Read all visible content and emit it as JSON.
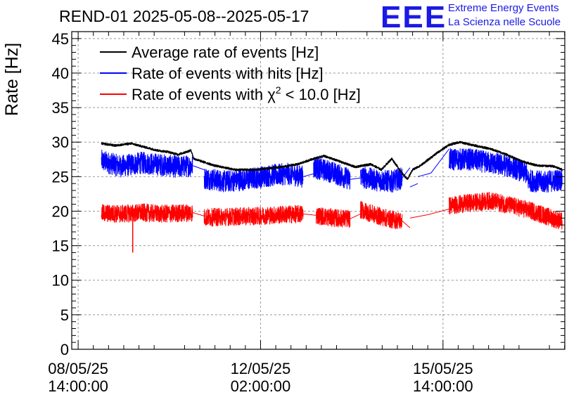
{
  "header": {
    "title": "REND-01 2025-05-08--2025-05-17",
    "logo_text": "EEE",
    "logo_line1": "Extreme Energy Events",
    "logo_line2": "La Scienza nelle Scuole"
  },
  "colors": {
    "average": "#000000",
    "hits": "#0000ff",
    "chi2": "#ff0000",
    "logo": "#1a1ae6",
    "grid": "#999999"
  },
  "chart_data": {
    "type": "line",
    "ylabel": "Rate [Hz]",
    "xlabel": "",
    "ylim": [
      0,
      46
    ],
    "yticks": [
      0,
      5,
      10,
      15,
      20,
      25,
      30,
      35,
      40,
      45
    ],
    "x_unit": "days since 2025-05-08 00:00",
    "xlim": [
      0.46,
      9.92
    ],
    "xticks": [
      {
        "x": 0.583,
        "line1": "08/05/25",
        "line2": "14:00:00"
      },
      {
        "x": 4.083,
        "line1": "12/05/25",
        "line2": "02:00:00"
      },
      {
        "x": 7.583,
        "line1": "15/05/25",
        "line2": "14:00:00"
      }
    ],
    "grid": true,
    "legend_position": "top-left",
    "legend": [
      {
        "name": "Average rate of events [Hz]",
        "color": "#000000"
      },
      {
        "name": "Rate of events with hits [Hz]",
        "color": "#0000ff"
      },
      {
        "name": "Rate of events with χ² < 10.0 [Hz]",
        "color": "#ff0000"
      }
    ],
    "series": [
      {
        "name": "Average rate of events [Hz]",
        "color": "#000000",
        "noise": 0.3,
        "segments": [
          {
            "x": [
              1.03,
              1.3,
              1.6,
              1.9,
              2.1,
              2.3,
              2.5,
              2.75,
              2.8
            ],
            "y": [
              29.8,
              29.5,
              29.8,
              29.2,
              28.8,
              28.6,
              28.2,
              28.8,
              27.6
            ]
          },
          {
            "x": [
              2.8,
              3.2,
              3.6,
              4.0,
              4.5,
              4.8,
              5.1,
              5.3
            ],
            "y": [
              27.6,
              26.6,
              26.0,
              26.0,
              26.4,
              26.8,
              27.6,
              28.0
            ]
          },
          {
            "x": [
              5.3,
              5.6,
              5.9,
              6.2,
              6.4,
              6.6,
              6.8,
              6.9,
              7.0
            ],
            "y": [
              28.0,
              27.2,
              26.4,
              26.8,
              26.0,
              27.6,
              25.5,
              24.6,
              26.0
            ]
          },
          {
            "x": [
              7.0,
              7.15,
              7.5,
              7.7,
              7.9,
              8.2,
              8.5,
              8.8,
              9.1,
              9.4,
              9.7,
              9.87
            ],
            "y": [
              26.0,
              26.6,
              28.6,
              29.6,
              30.0,
              29.5,
              29.0,
              28.2,
              27.2,
              26.6,
              26.5,
              26.0
            ]
          }
        ]
      },
      {
        "name": "Rate of events with hits [Hz]",
        "color": "#0000ff",
        "noise": 1.6,
        "segments": [
          {
            "x": [
              1.03,
              1.4,
              1.8,
              2.2,
              2.5,
              2.78
            ],
            "y": [
              27.3,
              26.5,
              27.0,
              26.7,
              26.4,
              26.6
            ]
          },
          {
            "x": [
              2.78,
              3.0
            ],
            "y": [
              26.6,
              26.0
            ]
          },
          {
            "x": [
              3.0,
              3.4,
              3.8,
              4.2,
              4.6,
              4.9
            ],
            "y": [
              24.8,
              24.3,
              24.6,
              25.1,
              25.4,
              25.0
            ]
          },
          {
            "x": [
              4.9,
              5.1
            ],
            "y": [
              25.0,
              25.4
            ]
          },
          {
            "x": [
              5.1,
              5.4,
              5.8
            ],
            "y": [
              26.3,
              25.8,
              24.6
            ]
          },
          {
            "x": [
              5.8,
              6.0
            ],
            "y": [
              24.6,
              24.8
            ]
          },
          {
            "x": [
              6.0,
              6.3,
              6.6,
              6.8
            ],
            "y": [
              25.0,
              24.5,
              24.3,
              24.8
            ]
          },
          {
            "x": [
              6.8,
              6.95
            ],
            "y": [
              24.8,
              26.3
            ]
          },
          {
            "x": [
              6.95,
              7.1
            ],
            "y": [
              23.5,
              24.0
            ]
          },
          {
            "x": [
              7.1,
              7.35
            ],
            "y": [
              25.0,
              25.5
            ]
          },
          {
            "x": [
              7.35,
              7.7
            ],
            "y": [
              25.5,
              29.0
            ]
          },
          {
            "x": [
              7.7,
              8.1,
              8.5,
              8.9,
              9.2
            ],
            "y": [
              27.5,
              27.5,
              27.0,
              26.4,
              25.5
            ]
          },
          {
            "x": [
              9.2,
              9.5,
              9.87
            ],
            "y": [
              24.5,
              24.2,
              24.6
            ]
          }
        ]
      },
      {
        "name": "Rate of events with χ² < 10.0 [Hz]",
        "color": "#ff0000",
        "noise": 1.3,
        "segments": [
          {
            "x": [
              1.03,
              1.4,
              1.8,
              2.2,
              2.5,
              2.78
            ],
            "y": [
              19.7,
              19.6,
              19.8,
              19.6,
              19.7,
              19.8
            ]
          },
          {
            "x": [
              2.78,
              3.0
            ],
            "y": [
              19.8,
              19.3
            ]
          },
          {
            "x": [
              3.0,
              3.5,
              4.0,
              4.5,
              4.9
            ],
            "y": [
              19.1,
              19.2,
              19.3,
              19.5,
              19.6
            ]
          },
          {
            "x": [
              4.9,
              5.15
            ],
            "y": [
              19.6,
              19.4
            ]
          },
          {
            "x": [
              5.15,
              5.5,
              5.8
            ],
            "y": [
              19.4,
              19.0,
              18.9
            ]
          },
          {
            "x": [
              5.8,
              6.0
            ],
            "y": [
              18.9,
              19.6
            ]
          },
          {
            "x": [
              6.0,
              6.3,
              6.6,
              6.8
            ],
            "y": [
              20.2,
              19.4,
              18.8,
              18.6
            ]
          },
          {
            "x": [
              6.8,
              6.95
            ],
            "y": [
              18.6,
              17.6
            ]
          },
          {
            "x": [
              6.95,
              7.3
            ],
            "y": [
              19.0,
              19.5
            ]
          },
          {
            "x": [
              7.3,
              7.7
            ],
            "y": [
              19.5,
              20.3
            ]
          },
          {
            "x": [
              7.7,
              8.1,
              8.5,
              8.9,
              9.3,
              9.6,
              9.87
            ],
            "y": [
              20.8,
              21.2,
              21.5,
              20.8,
              20.0,
              19.2,
              18.5
            ]
          }
        ]
      }
    ]
  }
}
